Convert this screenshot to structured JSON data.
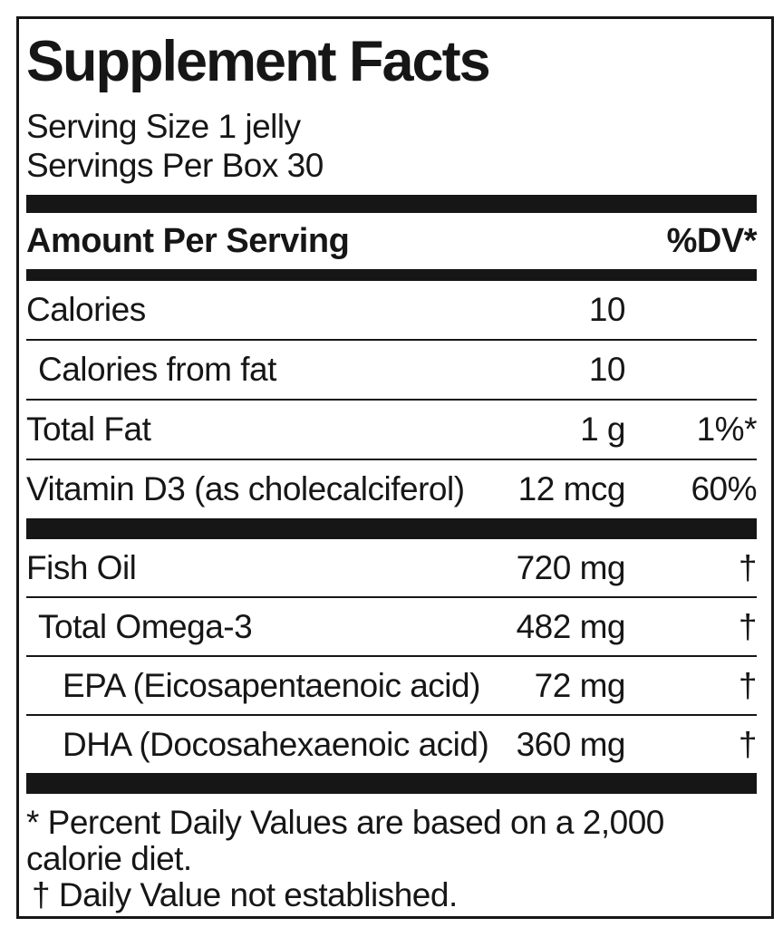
{
  "label": {
    "title": "Supplement Facts",
    "serving_lines": {
      "0": "Serving Size 1 jelly",
      "1": "Servings Per Box 30"
    },
    "header": {
      "left": "Amount Per Serving",
      "right": "%DV*"
    },
    "section1_rows": [
      {
        "name": "Calories",
        "amount": "10",
        "dv": "",
        "indent": 0
      },
      {
        "name": "Calories from fat",
        "amount": "10",
        "dv": "",
        "indent": 1
      },
      {
        "name": "Total Fat",
        "amount": "1 g",
        "dv": "1%*",
        "indent": 0
      },
      {
        "name": "Vitamin D3 (as cholecalciferol)",
        "amount": "12 mcg",
        "dv": "60%",
        "indent": 0
      }
    ],
    "section2_rows": [
      {
        "name": "Fish Oil",
        "amount": "720 mg",
        "dv": "†",
        "indent": 0
      },
      {
        "name": "Total Omega-3",
        "amount": "482 mg",
        "dv": "†",
        "indent": 1
      },
      {
        "name": "EPA (Eicosapentaenoic acid)",
        "amount": "72 mg",
        "dv": "†",
        "indent": 2
      },
      {
        "name": "DHA (Docosahexaenoic acid)",
        "amount": "360 mg",
        "dv": "†",
        "indent": 2
      }
    ],
    "footnotes": {
      "line1": "* Percent Daily Values are based on a 2,000",
      "line2": "calorie diet.",
      "line3": "† Daily Value not established."
    }
  },
  "colors": {
    "text": "#161616",
    "background": "#ffffff",
    "bars_and_border": "#161616"
  }
}
